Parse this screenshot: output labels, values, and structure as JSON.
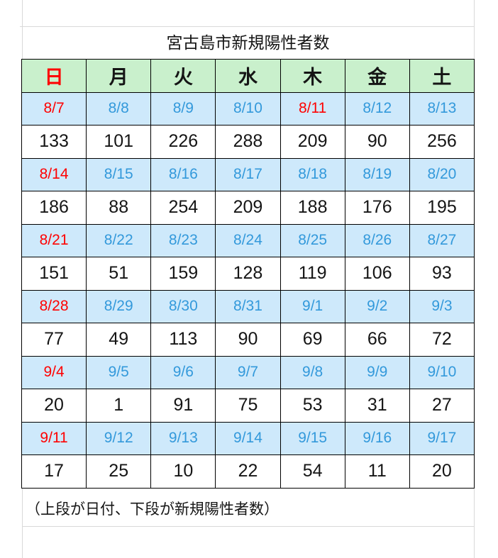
{
  "title": "宮古島市新規陽性者数",
  "note": "（上段が日付、下段が新規陽性者数）",
  "style": {
    "header_bg": "#c9f0cc",
    "date_bg": "#cee9fb",
    "date_text": "#3399db",
    "holiday_text": "#ff0000",
    "count_text": "#151515",
    "border_color": "#000000",
    "gridline_color": "#d9d9d9"
  },
  "chart_data": {
    "type": "table",
    "title": "宮古島市新規陽性者数",
    "note": "（上段が日付、下段が新規陽性者数）",
    "legend": "Top cell of each pair = date, bottom cell = new positive cases",
    "columns": [
      {
        "label": "日",
        "color": "#ff0000"
      },
      {
        "label": "月",
        "color": "#151515"
      },
      {
        "label": "火",
        "color": "#151515"
      },
      {
        "label": "水",
        "color": "#151515"
      },
      {
        "label": "木",
        "color": "#151515"
      },
      {
        "label": "金",
        "color": "#151515"
      },
      {
        "label": "土",
        "color": "#151515"
      }
    ],
    "weeks": [
      {
        "dates": [
          {
            "label": "8/7",
            "red": true
          },
          {
            "label": "8/8",
            "red": false
          },
          {
            "label": "8/9",
            "red": false
          },
          {
            "label": "8/10",
            "red": false
          },
          {
            "label": "8/11",
            "red": true
          },
          {
            "label": "8/12",
            "red": false
          },
          {
            "label": "8/13",
            "red": false
          }
        ],
        "counts": [
          133,
          101,
          226,
          288,
          209,
          90,
          256
        ]
      },
      {
        "dates": [
          {
            "label": "8/14",
            "red": true
          },
          {
            "label": "8/15",
            "red": false
          },
          {
            "label": "8/16",
            "red": false
          },
          {
            "label": "8/17",
            "red": false
          },
          {
            "label": "8/18",
            "red": false
          },
          {
            "label": "8/19",
            "red": false
          },
          {
            "label": "8/20",
            "red": false
          }
        ],
        "counts": [
          186,
          88,
          254,
          209,
          188,
          176,
          195
        ]
      },
      {
        "dates": [
          {
            "label": "8/21",
            "red": true
          },
          {
            "label": "8/22",
            "red": false
          },
          {
            "label": "8/23",
            "red": false
          },
          {
            "label": "8/24",
            "red": false
          },
          {
            "label": "8/25",
            "red": false
          },
          {
            "label": "8/26",
            "red": false
          },
          {
            "label": "8/27",
            "red": false
          }
        ],
        "counts": [
          151,
          51,
          159,
          128,
          119,
          106,
          93
        ]
      },
      {
        "dates": [
          {
            "label": "8/28",
            "red": true
          },
          {
            "label": "8/29",
            "red": false
          },
          {
            "label": "8/30",
            "red": false
          },
          {
            "label": "8/31",
            "red": false
          },
          {
            "label": "9/1",
            "red": false
          },
          {
            "label": "9/2",
            "red": false
          },
          {
            "label": "9/3",
            "red": false
          }
        ],
        "counts": [
          77,
          49,
          113,
          90,
          69,
          66,
          72
        ]
      },
      {
        "dates": [
          {
            "label": "9/4",
            "red": true
          },
          {
            "label": "9/5",
            "red": false
          },
          {
            "label": "9/6",
            "red": false
          },
          {
            "label": "9/7",
            "red": false
          },
          {
            "label": "9/8",
            "red": false
          },
          {
            "label": "9/9",
            "red": false
          },
          {
            "label": "9/10",
            "red": false
          }
        ],
        "counts": [
          20,
          1,
          91,
          75,
          53,
          31,
          27
        ]
      },
      {
        "dates": [
          {
            "label": "9/11",
            "red": true
          },
          {
            "label": "9/12",
            "red": false
          },
          {
            "label": "9/13",
            "red": false
          },
          {
            "label": "9/14",
            "red": false
          },
          {
            "label": "9/15",
            "red": false
          },
          {
            "label": "9/16",
            "red": false
          },
          {
            "label": "9/17",
            "red": false
          }
        ],
        "counts": [
          17,
          25,
          10,
          22,
          54,
          11,
          20
        ]
      }
    ]
  }
}
